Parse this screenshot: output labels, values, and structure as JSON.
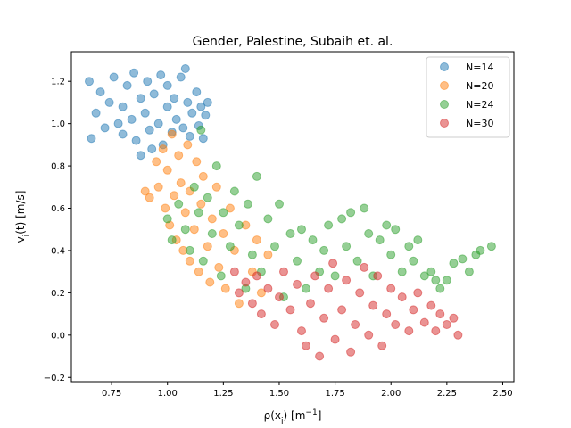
{
  "chart_data": {
    "type": "scatter",
    "title": "Gender, Palestine, Subaih et. al.",
    "xlabel": "ρ(x_i) [m^-1]",
    "ylabel": "v_i(t) [m/s]",
    "xlim": [
      0.57,
      2.55
    ],
    "ylim": [
      -0.22,
      1.34
    ],
    "x_ticks": [
      0.75,
      1.0,
      1.25,
      1.5,
      1.75,
      2.0,
      2.25,
      2.5
    ],
    "x_tick_labels": [
      "0.75",
      "1.00",
      "1.25",
      "1.50",
      "1.75",
      "2.00",
      "2.25",
      "2.50"
    ],
    "y_ticks": [
      -0.2,
      0.0,
      0.2,
      0.4,
      0.6,
      0.8,
      1.0,
      1.2
    ],
    "y_tick_labels": [
      "−0.2",
      "0.0",
      "0.2",
      "0.4",
      "0.6",
      "0.8",
      "1.0",
      "1.2"
    ],
    "grid": false,
    "legend_position": "top-right",
    "series": [
      {
        "name": "N=14",
        "color": "#1f77b4",
        "points": [
          [
            0.65,
            1.2
          ],
          [
            0.66,
            0.93
          ],
          [
            0.68,
            1.05
          ],
          [
            0.7,
            1.15
          ],
          [
            0.72,
            0.98
          ],
          [
            0.74,
            1.1
          ],
          [
            0.76,
            1.22
          ],
          [
            0.78,
            1.0
          ],
          [
            0.8,
            1.08
          ],
          [
            0.8,
            0.95
          ],
          [
            0.82,
            1.18
          ],
          [
            0.84,
            1.02
          ],
          [
            0.85,
            1.24
          ],
          [
            0.86,
            0.92
          ],
          [
            0.88,
            1.12
          ],
          [
            0.88,
            0.85
          ],
          [
            0.9,
            1.05
          ],
          [
            0.91,
            1.2
          ],
          [
            0.92,
            0.97
          ],
          [
            0.93,
            0.88
          ],
          [
            0.94,
            1.14
          ],
          [
            0.96,
            1.0
          ],
          [
            0.97,
            1.23
          ],
          [
            0.98,
            0.9
          ],
          [
            1.0,
            1.08
          ],
          [
            1.0,
            1.18
          ],
          [
            1.02,
            0.96
          ],
          [
            1.03,
            1.12
          ],
          [
            1.04,
            1.02
          ],
          [
            1.06,
            1.22
          ],
          [
            1.07,
            0.98
          ],
          [
            1.08,
            1.26
          ],
          [
            1.09,
            1.1
          ],
          [
            1.1,
            0.94
          ],
          [
            1.11,
            1.05
          ],
          [
            1.13,
            1.15
          ],
          [
            1.14,
            0.99
          ],
          [
            1.15,
            1.08
          ],
          [
            1.16,
            0.93
          ],
          [
            1.17,
            1.04
          ],
          [
            1.18,
            1.1
          ]
        ]
      },
      {
        "name": "N=20",
        "color": "#ff7f0e",
        "points": [
          [
            0.9,
            0.68
          ],
          [
            0.92,
            0.65
          ],
          [
            0.95,
            0.82
          ],
          [
            0.96,
            0.7
          ],
          [
            0.98,
            0.88
          ],
          [
            0.99,
            0.6
          ],
          [
            1.0,
            0.78
          ],
          [
            1.01,
            0.52
          ],
          [
            1.02,
            0.95
          ],
          [
            1.03,
            0.66
          ],
          [
            1.04,
            0.45
          ],
          [
            1.05,
            0.85
          ],
          [
            1.06,
            0.72
          ],
          [
            1.07,
            0.4
          ],
          [
            1.08,
            0.58
          ],
          [
            1.09,
            0.9
          ],
          [
            1.1,
            0.35
          ],
          [
            1.1,
            0.68
          ],
          [
            1.12,
            0.5
          ],
          [
            1.13,
            0.82
          ],
          [
            1.14,
            0.3
          ],
          [
            1.15,
            0.62
          ],
          [
            1.16,
            0.75
          ],
          [
            1.18,
            0.42
          ],
          [
            1.19,
            0.25
          ],
          [
            1.2,
            0.55
          ],
          [
            1.22,
            0.7
          ],
          [
            1.23,
            0.32
          ],
          [
            1.25,
            0.48
          ],
          [
            1.26,
            0.22
          ],
          [
            1.28,
            0.6
          ],
          [
            1.3,
            0.4
          ],
          [
            1.32,
            0.15
          ],
          [
            1.35,
            0.52
          ],
          [
            1.38,
            0.3
          ],
          [
            1.4,
            0.45
          ],
          [
            1.42,
            0.2
          ],
          [
            1.45,
            0.38
          ]
        ]
      },
      {
        "name": "N=24",
        "color": "#2ca02c",
        "points": [
          [
            1.0,
            0.55
          ],
          [
            1.02,
            0.45
          ],
          [
            1.05,
            0.62
          ],
          [
            1.08,
            0.5
          ],
          [
            1.1,
            0.4
          ],
          [
            1.12,
            0.7
          ],
          [
            1.14,
            0.58
          ],
          [
            1.15,
            0.97
          ],
          [
            1.16,
            0.35
          ],
          [
            1.18,
            0.65
          ],
          [
            1.2,
            0.48
          ],
          [
            1.22,
            0.8
          ],
          [
            1.24,
            0.28
          ],
          [
            1.25,
            0.58
          ],
          [
            1.28,
            0.42
          ],
          [
            1.3,
            0.68
          ],
          [
            1.32,
            0.52
          ],
          [
            1.35,
            0.22
          ],
          [
            1.36,
            0.62
          ],
          [
            1.38,
            0.38
          ],
          [
            1.4,
            0.75
          ],
          [
            1.42,
            0.3
          ],
          [
            1.45,
            0.55
          ],
          [
            1.48,
            0.42
          ],
          [
            1.5,
            0.62
          ],
          [
            1.52,
            0.18
          ],
          [
            1.55,
            0.48
          ],
          [
            1.58,
            0.35
          ],
          [
            1.6,
            0.5
          ],
          [
            1.62,
            0.22
          ],
          [
            1.65,
            0.45
          ],
          [
            1.68,
            0.3
          ],
          [
            1.7,
            0.4
          ],
          [
            1.72,
            0.52
          ],
          [
            1.75,
            0.28
          ],
          [
            1.78,
            0.55
          ],
          [
            1.8,
            0.42
          ],
          [
            1.82,
            0.58
          ],
          [
            1.85,
            0.35
          ],
          [
            1.88,
            0.6
          ],
          [
            1.9,
            0.48
          ],
          [
            1.92,
            0.28
          ],
          [
            1.95,
            0.45
          ],
          [
            1.98,
            0.52
          ],
          [
            2.0,
            0.38
          ],
          [
            2.02,
            0.5
          ],
          [
            2.05,
            0.3
          ],
          [
            2.08,
            0.42
          ],
          [
            2.1,
            0.35
          ],
          [
            2.12,
            0.45
          ],
          [
            2.15,
            0.28
          ],
          [
            2.18,
            0.3
          ],
          [
            2.2,
            0.26
          ],
          [
            2.22,
            0.22
          ],
          [
            2.25,
            0.26
          ],
          [
            2.28,
            0.34
          ],
          [
            2.32,
            0.36
          ],
          [
            2.35,
            0.3
          ],
          [
            2.38,
            0.38
          ],
          [
            2.4,
            0.4
          ],
          [
            2.45,
            0.42
          ]
        ]
      },
      {
        "name": "N=30",
        "color": "#d62728",
        "points": [
          [
            1.3,
            0.3
          ],
          [
            1.32,
            0.2
          ],
          [
            1.35,
            0.25
          ],
          [
            1.38,
            0.15
          ],
          [
            1.4,
            0.28
          ],
          [
            1.42,
            0.1
          ],
          [
            1.45,
            0.22
          ],
          [
            1.48,
            0.05
          ],
          [
            1.5,
            0.18
          ],
          [
            1.52,
            0.3
          ],
          [
            1.55,
            0.12
          ],
          [
            1.58,
            0.24
          ],
          [
            1.6,
            0.02
          ],
          [
            1.62,
            -0.05
          ],
          [
            1.64,
            0.15
          ],
          [
            1.66,
            0.28
          ],
          [
            1.68,
            -0.1
          ],
          [
            1.7,
            0.08
          ],
          [
            1.72,
            0.22
          ],
          [
            1.74,
            0.34
          ],
          [
            1.75,
            -0.02
          ],
          [
            1.78,
            0.12
          ],
          [
            1.8,
            0.26
          ],
          [
            1.82,
            -0.08
          ],
          [
            1.84,
            0.05
          ],
          [
            1.86,
            0.2
          ],
          [
            1.88,
            0.32
          ],
          [
            1.9,
            0.0
          ],
          [
            1.92,
            0.14
          ],
          [
            1.94,
            0.28
          ],
          [
            1.96,
            -0.05
          ],
          [
            1.98,
            0.1
          ],
          [
            2.0,
            0.22
          ],
          [
            2.02,
            0.05
          ],
          [
            2.05,
            0.18
          ],
          [
            2.08,
            0.02
          ],
          [
            2.1,
            0.12
          ],
          [
            2.12,
            0.2
          ],
          [
            2.15,
            0.06
          ],
          [
            2.18,
            0.14
          ],
          [
            2.2,
            0.02
          ],
          [
            2.22,
            0.1
          ],
          [
            2.25,
            0.05
          ],
          [
            2.28,
            0.08
          ],
          [
            2.3,
            0.0
          ]
        ]
      }
    ]
  }
}
